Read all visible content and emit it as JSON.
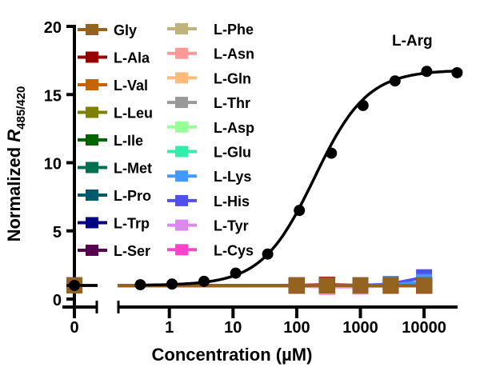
{
  "chart_data": {
    "type": "line",
    "title": "",
    "xlabel": "Concentration (µM)",
    "ylabel_prefix": "Normalized ",
    "ylabel_var": "R",
    "ylabel_sub": "485/420",
    "x_scale": "log with broken axis at 0",
    "ylim": [
      0,
      20
    ],
    "yticks": [
      "0",
      "5",
      "10",
      "15",
      "20"
    ],
    "xticks": [
      "0",
      "1",
      "10",
      "100",
      "1000",
      "10000"
    ],
    "annotation": "L-Arg",
    "legend_placement": "top-left, two columns",
    "arg_series": {
      "name": "L-Arg",
      "color": "#000000",
      "x": [
        0,
        0.35,
        1.1,
        3.5,
        11,
        35,
        110,
        350,
        1100,
        3500,
        11000,
        33000
      ],
      "y": [
        1.0,
        1.05,
        1.1,
        1.3,
        1.9,
        3.3,
        6.5,
        10.7,
        14.2,
        16.0,
        16.7,
        16.6
      ],
      "fit": {
        "bottom": 1.0,
        "top": 16.8,
        "ec50": 190,
        "hill": 1.05
      }
    },
    "series_x": [
      0,
      100,
      300,
      1000,
      3000,
      10000
    ],
    "series": [
      {
        "name": "L-Cys",
        "color": "#FF44CC",
        "values": [
          1.0,
          0.95,
          0.9,
          0.92,
          0.95,
          0.95
        ]
      },
      {
        "name": "L-Tyr",
        "color": "#DD88EE",
        "values": [
          1.0,
          0.97,
          0.92,
          0.94,
          0.96,
          0.97
        ]
      },
      {
        "name": "L-His",
        "color": "#5050F0",
        "values": [
          1.0,
          1.0,
          1.0,
          1.0,
          1.1,
          1.6
        ]
      },
      {
        "name": "L-Lys",
        "color": "#4499FF",
        "values": [
          1.0,
          1.0,
          1.0,
          1.0,
          1.05,
          1.25
        ]
      },
      {
        "name": "L-Glu",
        "color": "#33EEAA",
        "values": [
          1.0,
          1.0,
          1.0,
          1.0,
          1.0,
          1.0
        ]
      },
      {
        "name": "L-Asp",
        "color": "#99FF99",
        "values": [
          1.0,
          1.0,
          1.0,
          1.0,
          1.0,
          1.0
        ]
      },
      {
        "name": "L-Thr",
        "color": "#999999",
        "values": [
          1.0,
          1.0,
          1.0,
          1.0,
          1.0,
          1.0
        ]
      },
      {
        "name": "L-Gln",
        "color": "#FFBB77",
        "values": [
          1.0,
          1.0,
          1.0,
          1.0,
          1.0,
          1.0
        ]
      },
      {
        "name": "L-Asn",
        "color": "#FF9999",
        "values": [
          1.0,
          1.0,
          1.0,
          1.0,
          1.0,
          1.0
        ]
      },
      {
        "name": "L-Phe",
        "color": "#BFB27A",
        "values": [
          1.0,
          1.0,
          1.0,
          1.0,
          1.0,
          1.0
        ]
      },
      {
        "name": "L-Ser",
        "color": "#5A0050",
        "values": [
          1.0,
          1.0,
          1.0,
          1.0,
          1.0,
          1.0
        ]
      },
      {
        "name": "L-Trp",
        "color": "#000080",
        "values": [
          1.0,
          1.0,
          1.0,
          1.0,
          1.0,
          1.0
        ]
      },
      {
        "name": "L-Pro",
        "color": "#005A6E",
        "values": [
          1.0,
          1.0,
          1.0,
          1.0,
          1.0,
          1.0
        ]
      },
      {
        "name": "L-Met",
        "color": "#007050",
        "values": [
          1.0,
          1.0,
          1.0,
          1.0,
          1.0,
          1.0
        ]
      },
      {
        "name": "L-Ile",
        "color": "#006400",
        "values": [
          1.0,
          1.0,
          1.0,
          1.0,
          1.0,
          1.0
        ]
      },
      {
        "name": "L-Leu",
        "color": "#808000",
        "values": [
          1.0,
          1.0,
          1.0,
          1.0,
          1.0,
          1.0
        ]
      },
      {
        "name": "L-Val",
        "color": "#C86400",
        "values": [
          1.0,
          1.0,
          1.0,
          1.0,
          1.0,
          1.0
        ]
      },
      {
        "name": "L-Ala",
        "color": "#990000",
        "values": [
          1.0,
          1.0,
          1.05,
          1.0,
          1.0,
          1.0
        ]
      },
      {
        "name": "Gly",
        "color": "#946320",
        "values": [
          1.0,
          1.0,
          1.0,
          1.0,
          1.0,
          1.0
        ]
      }
    ],
    "legend": [
      [
        "Gly",
        "L-Ala",
        "L-Val",
        "L-Leu",
        "L-Ile",
        "L-Met",
        "L-Pro",
        "L-Trp",
        "L-Ser"
      ],
      [
        "L-Phe",
        "L-Asn",
        "L-Gln",
        "L-Thr",
        "L-Asp",
        "L-Glu",
        "L-Lys",
        "L-His",
        "L-Tyr",
        "L-Cys"
      ]
    ]
  }
}
